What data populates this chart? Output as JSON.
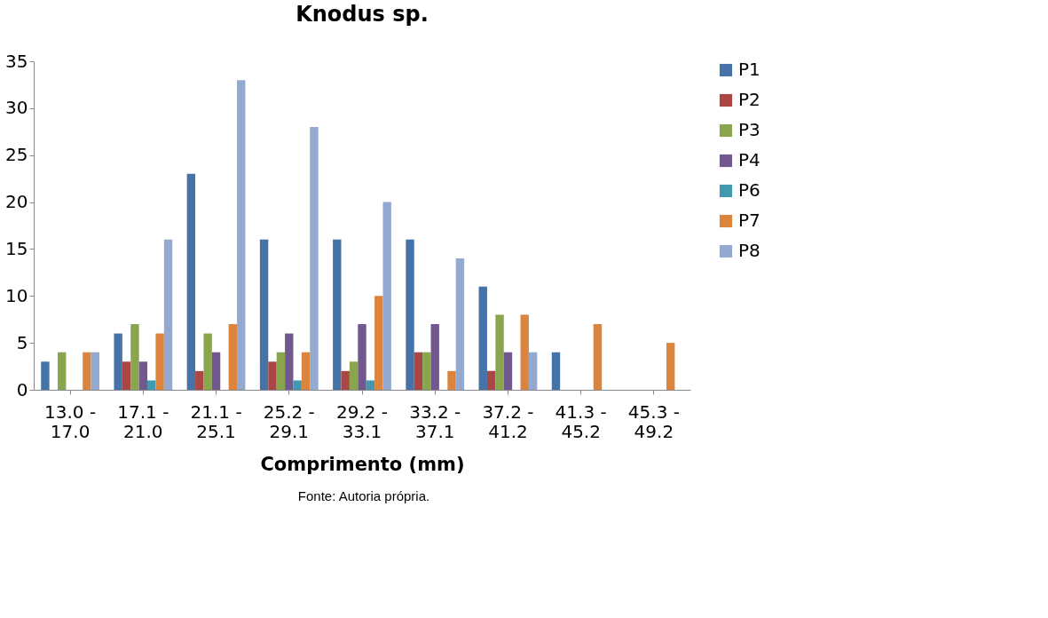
{
  "chart_data": {
    "type": "bar",
    "title": "Knodus sp.",
    "xlabel": "Comprimento (mm)",
    "categories": [
      "13.0 - 17.0",
      "17.1 - 21.0",
      "21.1 - 25.1",
      "25.2 - 29.1",
      "29.2 - 33.1",
      "33.2 - 37.1",
      "37.2 - 41.2",
      "41.3 - 45.2",
      "45.3 - 49.2"
    ],
    "series": [
      {
        "name": "P1",
        "color": "#4572a7",
        "values": [
          3,
          6,
          23,
          16,
          16,
          16,
          11,
          4,
          0
        ]
      },
      {
        "name": "P2",
        "color": "#aa4643",
        "values": [
          0,
          3,
          2,
          3,
          2,
          4,
          2,
          0,
          0
        ]
      },
      {
        "name": "P3",
        "color": "#89a54e",
        "values": [
          4,
          7,
          6,
          4,
          3,
          4,
          8,
          0,
          0
        ]
      },
      {
        "name": "P4",
        "color": "#71588f",
        "values": [
          0,
          3,
          4,
          6,
          7,
          7,
          4,
          0,
          0
        ]
      },
      {
        "name": "P6",
        "color": "#4198af",
        "values": [
          0,
          1,
          0,
          1,
          1,
          0,
          0,
          0,
          0
        ]
      },
      {
        "name": "P7",
        "color": "#db843d",
        "values": [
          4,
          6,
          7,
          4,
          10,
          2,
          8,
          7,
          5
        ]
      },
      {
        "name": "P8",
        "color": "#93a9cf",
        "values": [
          4,
          16,
          33,
          28,
          20,
          14,
          4,
          0,
          0
        ]
      }
    ],
    "ylim": [
      0,
      35
    ],
    "yticks": [
      0,
      5,
      10,
      15,
      20,
      25,
      30,
      35
    ],
    "grid": false,
    "legend": "right",
    "annotations": [
      "Fonte: Autoria própria."
    ]
  }
}
